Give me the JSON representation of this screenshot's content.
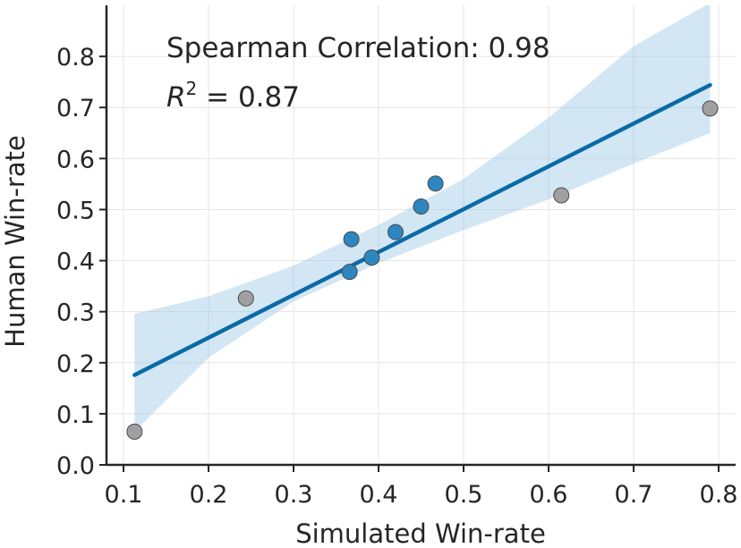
{
  "chart_data": {
    "type": "scatter",
    "title": "",
    "xlabel": "Simulated Win-rate",
    "ylabel": "Human Win-rate",
    "xlim": [
      0.08,
      0.82
    ],
    "ylim": [
      0.0,
      0.9
    ],
    "xticks": [
      0.1,
      0.2,
      0.3,
      0.4,
      0.5,
      0.6,
      0.7,
      0.8
    ],
    "yticks": [
      0.0,
      0.1,
      0.2,
      0.3,
      0.4,
      0.5,
      0.6,
      0.7,
      0.8
    ],
    "grid": true,
    "annotations": {
      "spearman": "Spearman Correlation: 0.98",
      "r2_symbol": "R",
      "r2_exponent": "2",
      "r2_value": " = 0.87"
    },
    "series": [
      {
        "name": "blue points",
        "color": "#2e86c1",
        "x": [
          0.366,
          0.368,
          0.392,
          0.42,
          0.45,
          0.467
        ],
        "y": [
          0.378,
          0.442,
          0.406,
          0.456,
          0.506,
          0.551
        ]
      },
      {
        "name": "gray points",
        "color": "#a0a0a0",
        "x": [
          0.113,
          0.244,
          0.615,
          0.79
        ],
        "y": [
          0.065,
          0.326,
          0.528,
          0.698
        ]
      }
    ],
    "regression": {
      "color": "#0a6aa6",
      "band_color": "#9cc8e6",
      "x": [
        0.113,
        0.79
      ],
      "y": [
        0.176,
        0.744
      ],
      "band": {
        "x": [
          0.113,
          0.2,
          0.3,
          0.4,
          0.5,
          0.6,
          0.7,
          0.79
        ],
        "lower": [
          0.065,
          0.21,
          0.32,
          0.395,
          0.46,
          0.52,
          0.59,
          0.65
        ],
        "upper": [
          0.296,
          0.33,
          0.39,
          0.47,
          0.56,
          0.68,
          0.82,
          0.905
        ]
      }
    }
  }
}
